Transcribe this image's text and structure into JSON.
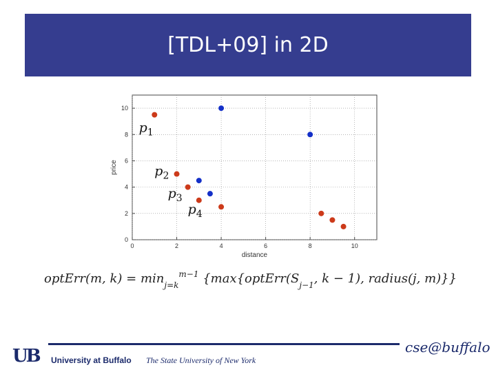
{
  "slide": {
    "title": "[TDL+09] in 2D"
  },
  "formula": {
    "lhs": "optErr(m, k)",
    "eq": " = ",
    "min": "min",
    "sub": "j=k",
    "sup": "m−1",
    "body": " {max{optErr(S",
    "s_sub": "j−1",
    "rest": ", k − 1), radius(j, m)}}"
  },
  "footer": {
    "logo": "UB",
    "university": "University at Buffalo",
    "suny": "The State University of New York",
    "cse": "cse@buffalo"
  },
  "chart_data": {
    "type": "scatter",
    "xlabel": "distance",
    "ylabel": "price",
    "xlim": [
      0,
      11
    ],
    "ylim": [
      0,
      11
    ],
    "xticks": [
      0,
      2,
      4,
      6,
      8,
      10
    ],
    "yticks": [
      0,
      2,
      4,
      6,
      8,
      10
    ],
    "grid": true,
    "series": [
      {
        "color": "#cc3a1a",
        "points": [
          {
            "x": 1.0,
            "y": 9.5
          },
          {
            "x": 2.0,
            "y": 5.0
          },
          {
            "x": 2.5,
            "y": 4.0
          },
          {
            "x": 3.0,
            "y": 3.0
          },
          {
            "x": 4.0,
            "y": 2.5
          },
          {
            "x": 8.5,
            "y": 2.0
          },
          {
            "x": 9.0,
            "y": 1.5
          },
          {
            "x": 9.5,
            "y": 1.0
          }
        ]
      },
      {
        "color": "#1430c8",
        "points": [
          {
            "x": 4.0,
            "y": 10.0
          },
          {
            "x": 8.0,
            "y": 8.0
          },
          {
            "x": 3.0,
            "y": 4.5
          },
          {
            "x": 3.5,
            "y": 3.5
          }
        ]
      }
    ],
    "annotations": [
      {
        "label": "p",
        "sub": "1",
        "x": 0.3,
        "y": 8.5
      },
      {
        "label": "p",
        "sub": "2",
        "x": 1.0,
        "y": 5.2
      },
      {
        "label": "p",
        "sub": "3",
        "x": 1.6,
        "y": 3.5
      },
      {
        "label": "p",
        "sub": "4",
        "x": 2.5,
        "y": 2.3
      }
    ]
  }
}
